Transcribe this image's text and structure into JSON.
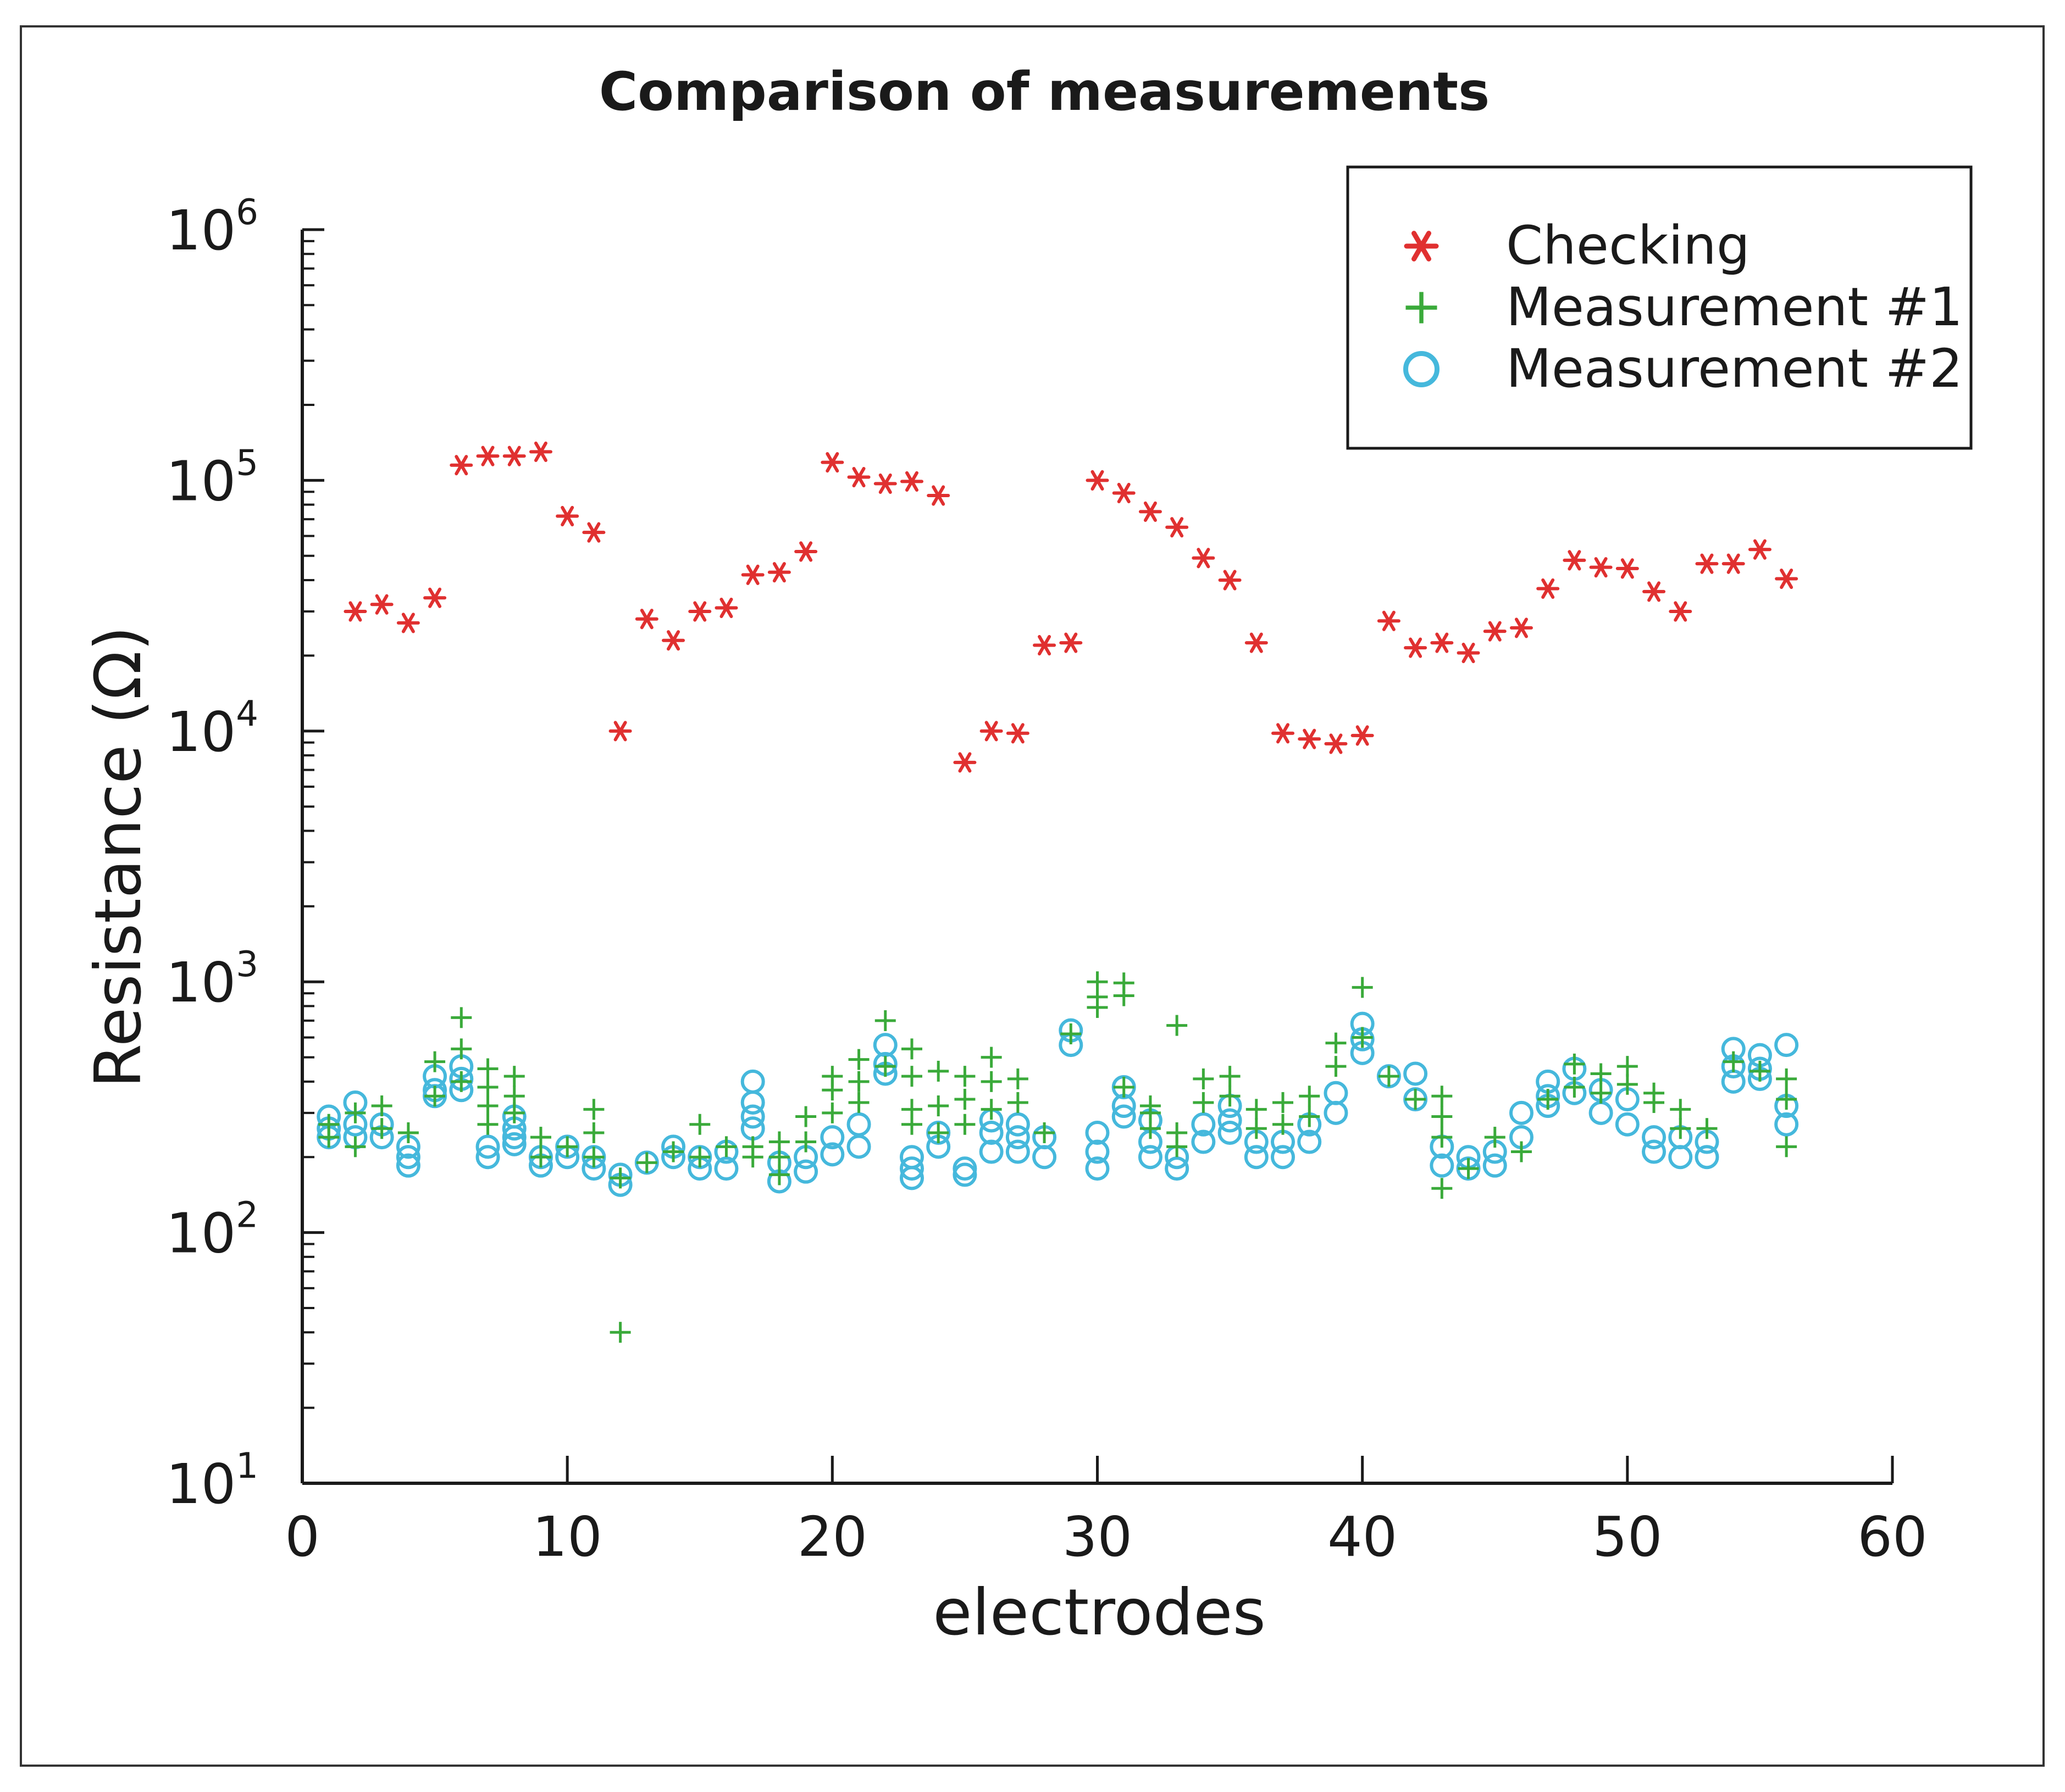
{
  "chart_data": {
    "type": "scatter",
    "title": "Comparison of measurements",
    "xlabel": "electrodes",
    "ylabel": "Resistance (Ω)",
    "xlim": [
      0,
      60
    ],
    "ylim": [
      10,
      1000000
    ],
    "yscale": "log",
    "xticks": [
      0,
      10,
      20,
      30,
      40,
      50,
      60
    ],
    "xtick_labels": [
      "0",
      "10",
      "20",
      "30",
      "40",
      "50",
      "60"
    ],
    "yticks": [
      10,
      100,
      1000,
      10000,
      100000,
      1000000
    ],
    "ytick_labels": [
      {
        "base": "10",
        "exp": "1"
      },
      {
        "base": "10",
        "exp": "2"
      },
      {
        "base": "10",
        "exp": "3"
      },
      {
        "base": "10",
        "exp": "4"
      },
      {
        "base": "10",
        "exp": "5"
      },
      {
        "base": "10",
        "exp": "6"
      }
    ],
    "legend": {
      "location": "top-right",
      "entries": [
        "Checking",
        "Measurement #1",
        "Measurement #2"
      ]
    },
    "series": [
      {
        "name": "Checking",
        "marker": "asterisk",
        "color": "#e03030",
        "x": [
          2,
          3,
          4,
          5,
          6,
          7,
          8,
          9,
          10,
          11,
          12,
          13,
          14,
          15,
          16,
          17,
          18,
          19,
          20,
          21,
          22,
          23,
          24,
          25,
          26,
          27,
          28,
          29,
          30,
          31,
          32,
          33,
          34,
          35,
          36,
          37,
          38,
          39,
          40,
          41,
          42,
          43,
          44,
          45,
          46,
          47,
          48,
          49,
          50,
          51,
          52,
          53,
          54,
          55,
          56
        ],
        "y": [
          30000,
          32000,
          27000,
          34000,
          115000,
          125000,
          125000,
          130000,
          72000,
          62000,
          10000,
          28000,
          23000,
          30000,
          31000,
          42000,
          43000,
          52000,
          118000,
          103000,
          97000,
          99000,
          87000,
          7500,
          10000,
          9800,
          22000,
          22500,
          100000,
          89000,
          75000,
          65000,
          49000,
          40000,
          22500,
          9800,
          9300,
          8900,
          9600,
          27500,
          21500,
          22500,
          20500,
          25000,
          25800,
          37000,
          48000,
          45000,
          44500,
          36000,
          30000,
          46500,
          46500,
          53000,
          40500
        ]
      },
      {
        "name": "Measurement #1",
        "marker": "plus",
        "color": "#3aaa3a",
        "x": [
          1,
          1,
          2,
          2,
          3,
          3,
          4,
          5,
          5,
          6,
          6,
          6,
          7,
          7,
          7,
          7,
          8,
          8,
          8,
          9,
          9,
          10,
          11,
          11,
          11,
          12,
          12,
          13,
          14,
          15,
          15,
          16,
          17,
          17,
          18,
          18,
          18,
          19,
          19,
          20,
          20,
          20,
          21,
          21,
          21,
          22,
          22,
          23,
          23,
          23,
          23,
          24,
          24,
          24,
          25,
          25,
          25,
          26,
          26,
          26,
          27,
          27,
          28,
          29,
          30,
          30,
          30,
          31,
          31,
          31,
          32,
          32,
          32,
          33,
          33,
          33,
          34,
          34,
          35,
          35,
          36,
          36,
          37,
          37,
          38,
          38,
          39,
          39,
          40,
          40,
          41,
          42,
          43,
          43,
          43,
          43,
          44,
          45,
          46,
          47,
          48,
          48,
          49,
          49,
          50,
          50,
          51,
          51,
          52,
          52,
          53,
          54,
          55,
          56,
          56,
          56
        ],
        "y": [
          270,
          240,
          300,
          220,
          320,
          260,
          250,
          480,
          350,
          720,
          540,
          400,
          450,
          380,
          320,
          270,
          420,
          350,
          300,
          240,
          200,
          220,
          310,
          250,
          200,
          40,
          165,
          190,
          210,
          270,
          200,
          220,
          220,
          200,
          230,
          200,
          170,
          290,
          230,
          420,
          370,
          300,
          490,
          400,
          330,
          700,
          460,
          540,
          420,
          310,
          270,
          440,
          320,
          250,
          420,
          340,
          270,
          500,
          400,
          310,
          410,
          330,
          250,
          620,
          1000,
          870,
          790,
          990,
          880,
          380,
          320,
          300,
          260,
          670,
          250,
          220,
          410,
          330,
          420,
          350,
          310,
          260,
          330,
          270,
          350,
          290,
          570,
          460,
          950,
          600,
          420,
          340,
          350,
          290,
          240,
          150,
          180,
          240,
          210,
          340,
          470,
          380,
          430,
          360,
          460,
          390,
          360,
          330,
          310,
          260,
          260,
          480,
          440,
          410,
          340,
          220
        ]
      },
      {
        "name": "Measurement #2",
        "marker": "circle",
        "color": "#45b8dc",
        "x": [
          1,
          1,
          1,
          2,
          2,
          2,
          3,
          3,
          4,
          4,
          4,
          5,
          5,
          5,
          6,
          6,
          6,
          7,
          7,
          8,
          8,
          8,
          8,
          9,
          9,
          10,
          10,
          11,
          11,
          12,
          12,
          13,
          14,
          14,
          15,
          15,
          16,
          16,
          17,
          17,
          17,
          17,
          18,
          18,
          19,
          19,
          20,
          20,
          21,
          21,
          22,
          22,
          22,
          23,
          23,
          23,
          24,
          24,
          25,
          25,
          26,
          26,
          26,
          27,
          27,
          27,
          28,
          28,
          29,
          29,
          30,
          30,
          30,
          31,
          31,
          31,
          32,
          32,
          32,
          33,
          33,
          34,
          34,
          35,
          35,
          35,
          36,
          36,
          37,
          37,
          38,
          38,
          39,
          39,
          40,
          40,
          40,
          41,
          42,
          42,
          43,
          43,
          44,
          44,
          45,
          45,
          46,
          46,
          47,
          47,
          47,
          48,
          48,
          49,
          49,
          50,
          50,
          51,
          51,
          52,
          52,
          53,
          53,
          54,
          54,
          54,
          55,
          55,
          55,
          56,
          56,
          56
        ],
        "y": [
          290,
          260,
          240,
          330,
          270,
          240,
          270,
          240,
          220,
          200,
          185,
          420,
          370,
          350,
          460,
          410,
          370,
          220,
          200,
          290,
          260,
          240,
          225,
          200,
          185,
          220,
          200,
          200,
          180,
          170,
          155,
          190,
          220,
          200,
          200,
          180,
          210,
          180,
          400,
          330,
          290,
          260,
          190,
          160,
          200,
          175,
          240,
          205,
          270,
          220,
          560,
          470,
          430,
          200,
          180,
          165,
          250,
          220,
          180,
          170,
          280,
          250,
          210,
          270,
          240,
          210,
          240,
          200,
          640,
          560,
          250,
          210,
          180,
          380,
          320,
          290,
          280,
          230,
          200,
          200,
          180,
          270,
          230,
          320,
          280,
          250,
          230,
          200,
          230,
          200,
          270,
          230,
          360,
          300,
          680,
          590,
          520,
          420,
          430,
          340,
          220,
          185,
          200,
          180,
          210,
          185,
          300,
          240,
          400,
          350,
          320,
          450,
          360,
          370,
          300,
          340,
          270,
          240,
          210,
          240,
          200,
          230,
          200,
          540,
          460,
          400,
          510,
          450,
          410,
          560,
          320,
          270
        ]
      }
    ]
  }
}
